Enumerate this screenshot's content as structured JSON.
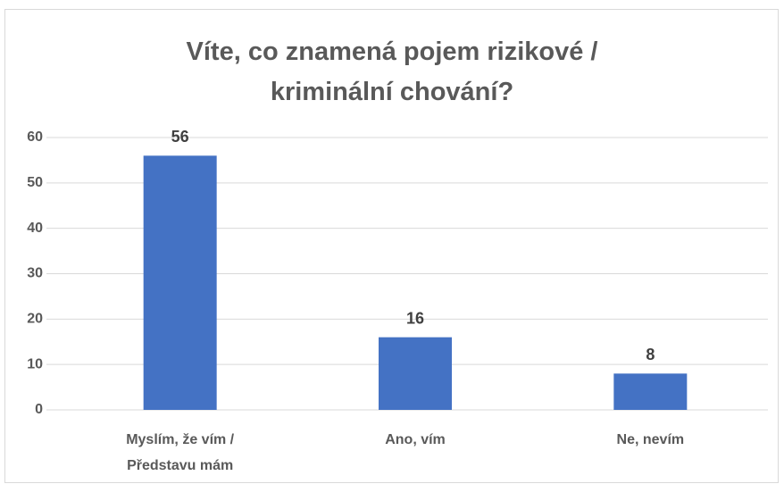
{
  "chart_data": {
    "type": "bar",
    "title": "Víte, co znamená pojem rizikové / kriminální chování?",
    "categories": [
      "Myslím, že vím / Představu mám",
      "Ano, vím",
      "Ne, nevím"
    ],
    "values": [
      56,
      16,
      8
    ],
    "color": "#4472c4",
    "ylim": [
      0,
      60
    ],
    "yticks": [
      0,
      10,
      20,
      30,
      40,
      50,
      60
    ],
    "grid": true,
    "data_labels": true
  }
}
